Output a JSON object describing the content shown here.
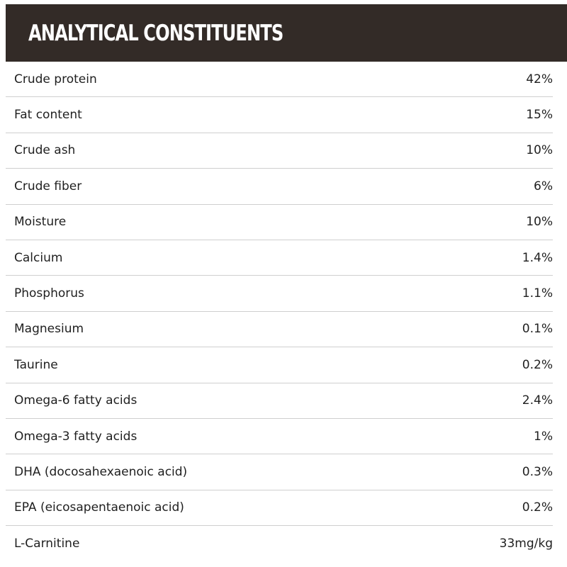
{
  "theme": {
    "header_bg": "#332b27",
    "header_text": "#ffffff",
    "row_divider": "#cfcfcf",
    "text": "#1f1f1f"
  },
  "header": {
    "title": "ANALYTICAL CONSTITUENTS"
  },
  "constituents": [
    {
      "label": "Crude protein",
      "value": "42%"
    },
    {
      "label": "Fat content",
      "value": "15%"
    },
    {
      "label": "Crude ash",
      "value": "10%"
    },
    {
      "label": "Crude fiber",
      "value": "6%"
    },
    {
      "label": "Moisture",
      "value": "10%"
    },
    {
      "label": "Calcium",
      "value": "1.4%"
    },
    {
      "label": "Phosphorus",
      "value": "1.1%"
    },
    {
      "label": "Magnesium",
      "value": "0.1%"
    },
    {
      "label": "Taurine",
      "value": "0.2%"
    },
    {
      "label": "Omega-6 fatty acids",
      "value": "2.4%"
    },
    {
      "label": "Omega-3 fatty acids",
      "value": "1%"
    },
    {
      "label": "DHA (docosahexaenoic acid)",
      "value": "0.3%"
    },
    {
      "label": "EPA (eicosapentaenoic acid)",
      "value": "0.2%"
    },
    {
      "label": "L-Carnitine",
      "value": "33mg/kg"
    }
  ]
}
